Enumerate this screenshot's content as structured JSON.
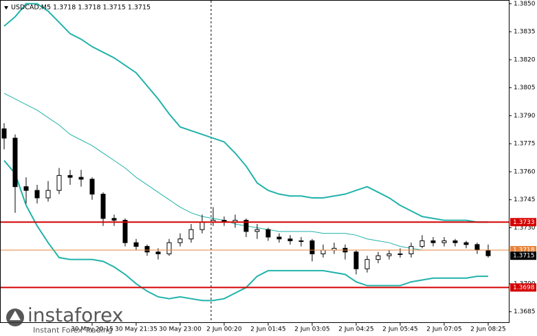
{
  "chart_data": {
    "type": "candlestick",
    "title": "USDCAD,M5  1.3718 1.3718 1.3715 1.3715",
    "categories": [
      null,
      null,
      null,
      null,
      null,
      null,
      null,
      null,
      "30 May 20:15",
      null,
      null,
      null,
      "30 May 21:35",
      null,
      null,
      null,
      "30 May 23:00",
      null,
      null,
      null,
      "2 Jun 00:20",
      null,
      null,
      null,
      "2 Jun 01:45",
      null,
      null,
      null,
      "2 Jun 03:05",
      null,
      null,
      null,
      "2 Jun 04:25",
      null,
      null,
      null,
      "2 Jun 05:45",
      null,
      null,
      null,
      "2 Jun 07:05",
      null,
      null,
      null,
      "2 Jun 08:25"
    ],
    "open": [
      1.3783,
      1.3778,
      1.3752,
      1.375,
      1.3746,
      1.375,
      1.3758,
      1.3757,
      1.3756,
      1.3748,
      1.3735,
      1.3734,
      1.3722,
      1.372,
      1.3717,
      1.3716,
      1.3722,
      1.3724,
      1.3729,
      1.3733,
      1.3734,
      1.3733,
      1.3734,
      1.3728,
      1.3729,
      1.3725,
      1.3724,
      1.3723,
      1.3723,
      1.3716,
      1.3718,
      1.3719,
      1.3717,
      1.3708,
      1.3713,
      1.3715,
      1.3716,
      1.3716,
      1.372,
      1.3723,
      1.3722,
      1.3723,
      1.3722,
      1.3721,
      1.3718
    ],
    "high": [
      1.3786,
      1.378,
      1.3757,
      1.3753,
      1.3755,
      1.3762,
      1.3761,
      1.3761,
      1.3757,
      1.3749,
      1.3737,
      1.3735,
      1.3724,
      1.3721,
      1.3719,
      1.3724,
      1.3727,
      1.3732,
      1.3737,
      1.3741,
      1.3736,
      1.3737,
      1.3735,
      1.3732,
      1.373,
      1.3727,
      1.3726,
      1.3725,
      1.3724,
      1.3721,
      1.3722,
      1.3721,
      1.3718,
      1.3715,
      1.3717,
      1.3718,
      1.3719,
      1.3722,
      1.3726,
      1.3725,
      1.3725,
      1.3724,
      1.3723,
      1.3722,
      1.3721
    ],
    "low": [
      1.3772,
      1.3738,
      1.3743,
      1.3743,
      1.3744,
      1.3748,
      1.3753,
      1.3752,
      1.3745,
      1.3731,
      1.3731,
      1.372,
      1.3718,
      1.3715,
      1.3713,
      1.3715,
      1.372,
      1.3722,
      1.3727,
      1.3731,
      1.3731,
      1.373,
      1.3725,
      1.3724,
      1.3723,
      1.3722,
      1.3721,
      1.372,
      1.3712,
      1.3714,
      1.3716,
      1.3713,
      1.3705,
      1.3706,
      1.3711,
      1.3713,
      1.3714,
      1.3714,
      1.3719,
      1.372,
      1.372,
      1.372,
      1.3719,
      1.3716,
      1.3714
    ],
    "close": [
      1.3778,
      1.3752,
      1.375,
      1.3746,
      1.375,
      1.3758,
      1.3757,
      1.3756,
      1.3748,
      1.3735,
      1.3734,
      1.3722,
      1.372,
      1.3717,
      1.3716,
      1.3722,
      1.3724,
      1.3729,
      1.3733,
      1.3734,
      1.3733,
      1.3734,
      1.3728,
      1.3729,
      1.3725,
      1.3724,
      1.3723,
      1.3723,
      1.3716,
      1.3718,
      1.3719,
      1.3717,
      1.3708,
      1.3713,
      1.3715,
      1.3716,
      1.3716,
      1.372,
      1.3723,
      1.3722,
      1.3723,
      1.3722,
      1.3721,
      1.3718,
      1.3715
    ],
    "bands": {
      "color": "#20b2aa",
      "upper": [
        1.3838,
        1.3843,
        1.385,
        1.385,
        1.3846,
        1.384,
        1.3834,
        1.3831,
        1.3827,
        1.3824,
        1.3821,
        1.3817,
        1.3813,
        1.3806,
        1.3799,
        1.3791,
        1.3784,
        1.3782,
        1.378,
        1.3778,
        1.3776,
        1.377,
        1.3763,
        1.3754,
        1.375,
        1.3748,
        1.3747,
        1.3747,
        1.3746,
        1.3746,
        1.3747,
        1.3748,
        1.375,
        1.3752,
        1.3749,
        1.3746,
        1.3742,
        1.3739,
        1.3736,
        1.3735,
        1.3734,
        1.3734,
        1.3734,
        1.3733,
        1.3733
      ],
      "middle": [
        1.3802,
        1.3799,
        1.3796,
        1.3793,
        1.3789,
        1.3785,
        1.378,
        1.3777,
        1.3774,
        1.377,
        1.3766,
        1.3762,
        1.3757,
        1.3753,
        1.3749,
        1.3745,
        1.3741,
        1.3738,
        1.3736,
        1.3735,
        1.3734,
        1.3732,
        1.3731,
        1.373,
        1.3729,
        1.3728,
        1.3728,
        1.3728,
        1.3728,
        1.3727,
        1.3727,
        1.3727,
        1.3726,
        1.3724,
        1.3723,
        1.3722,
        1.372,
        1.3719,
        1.3718,
        1.3718,
        1.3718,
        1.3718,
        1.3718,
        1.3718,
        1.3718
      ],
      "lower": [
        1.3766,
        1.3759,
        1.3742,
        1.3731,
        1.3722,
        1.3714,
        1.3713,
        1.3713,
        1.3713,
        1.3712,
        1.3709,
        1.3705,
        1.37,
        1.3696,
        1.3693,
        1.3692,
        1.3693,
        1.3692,
        1.3691,
        1.3691,
        1.3692,
        1.3695,
        1.3698,
        1.3704,
        1.3707,
        1.3707,
        1.3707,
        1.3707,
        1.3707,
        1.3707,
        1.3706,
        1.3705,
        1.3701,
        1.3699,
        1.3699,
        1.3699,
        1.3699,
        1.3701,
        1.3702,
        1.3703,
        1.3703,
        1.3703,
        1.3703,
        1.3704,
        1.3704
      ]
    },
    "levels": [
      {
        "value": 1.3733,
        "color": "#d40000"
      },
      {
        "value": 1.3698,
        "color": "#d40000"
      },
      {
        "value": 1.3718,
        "color": "#e8843a"
      },
      {
        "value": 1.3715,
        "color": "#000000"
      }
    ],
    "ylim": [
      1.3679,
      1.3852
    ],
    "yticks": [
      {
        "value": 1.385,
        "label": "1.3850"
      },
      1.3835,
      {
        "value": 1.382,
        "label": "1.3820"
      },
      1.3805,
      {
        "value": 1.379,
        "label": "1.3790"
      },
      1.3775,
      {
        "value": 1.376,
        "label": "1.3760"
      },
      1.3745,
      {
        "value": 1.373,
        "label": "1.3730"
      },
      {
        "value": 1.37,
        "label": "1.3700"
      },
      1.3685
    ],
    "watermark": {
      "brand": "instaforex",
      "tagline": "Instant Forex Trading"
    }
  }
}
